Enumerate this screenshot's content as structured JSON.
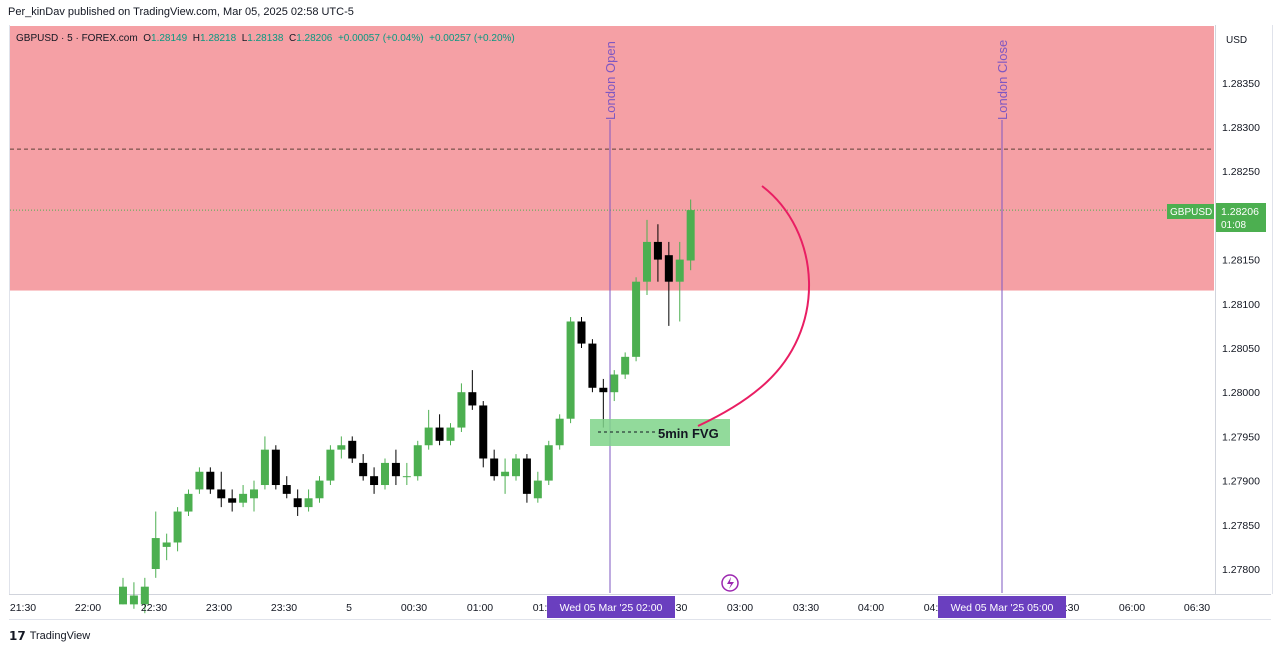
{
  "header": {
    "published_line": "Per_kinDav published on TradingView.com, Mar 05, 2025 02:58 UTC-5"
  },
  "legend": {
    "symbol": "GBPUSD · 5 · FOREX.com",
    "o_label": "O",
    "o_value": "1.28149",
    "h_label": "H",
    "h_value": "1.28218",
    "l_label": "L",
    "l_value": "1.28138",
    "c_label": "C",
    "c_value": "1.28206",
    "change": "+0.00057 (+0.04%)",
    "change2": "+0.00257 (+0.20%)"
  },
  "currency": "USD",
  "price_badge": {
    "symbol": "GBPUSD",
    "price": "1.28206",
    "countdown": "01:08",
    "color": "#4caf50"
  },
  "annotations": {
    "london_open": "London Open",
    "london_close": "London Close",
    "fvg_label": "5min FVG",
    "open_time_tag": "Wed 05 Mar '25   02:00",
    "close_time_tag": "Wed 05 Mar '25   05:00"
  },
  "colors": {
    "up": "#4caf50",
    "down": "#000000",
    "zone": "#f5a0a5",
    "fvg": "#7fd48a",
    "session_line": "#7e57c2",
    "curve": "#e91e63"
  },
  "footer": {
    "brand": "TradingView"
  },
  "chart_data": {
    "type": "candlestick",
    "interval": "5",
    "ylim": [
      1.2776,
      1.284
    ],
    "y_ticks": [
      1.278,
      1.2785,
      1.279,
      1.2795,
      1.28,
      1.2805,
      1.281,
      1.2815,
      1.282,
      1.2825,
      1.283,
      1.2835
    ],
    "y_tick_labels": [
      "1.27800",
      "1.27850",
      "1.27900",
      "1.27950",
      "1.28000",
      "1.28050",
      "1.28100",
      "1.28150",
      "1.28200",
      "1.28250",
      "1.28300",
      "1.28350"
    ],
    "x_tick_labels": [
      "21:30",
      "22:00",
      "22:30",
      "23:00",
      "23:30",
      "5",
      "00:30",
      "01:00",
      "01:",
      ":30",
      "03:00",
      "03:30",
      "04:00",
      "04:",
      ":30",
      "06:00",
      "06:30"
    ],
    "supply_zone": [
      1.28115,
      1.284
    ],
    "dashed_level": 1.28275,
    "fvg_zone": [
      1.2794,
      1.2797
    ],
    "fvg_dashed_level": 1.27955,
    "last_price": 1.28206,
    "candles": [
      [
        1.2776,
        1.2779,
        1.2776,
        1.2778
      ],
      [
        1.2776,
        1.27785,
        1.27755,
        1.2777
      ],
      [
        1.2776,
        1.2779,
        1.2775,
        1.2778
      ],
      [
        1.278,
        1.27865,
        1.2779,
        1.27835
      ],
      [
        1.27825,
        1.2784,
        1.2781,
        1.2783
      ],
      [
        1.2783,
        1.2787,
        1.2782,
        1.27865
      ],
      [
        1.27865,
        1.2789,
        1.2786,
        1.27885
      ],
      [
        1.2789,
        1.27915,
        1.27885,
        1.2791
      ],
      [
        1.2791,
        1.27915,
        1.27885,
        1.2789
      ],
      [
        1.2789,
        1.2791,
        1.2787,
        1.2788
      ],
      [
        1.2788,
        1.2789,
        1.27865,
        1.27875
      ],
      [
        1.27875,
        1.27895,
        1.2787,
        1.27885
      ],
      [
        1.2788,
        1.279,
        1.27865,
        1.2789
      ],
      [
        1.27895,
        1.2795,
        1.2789,
        1.27935
      ],
      [
        1.27935,
        1.2794,
        1.2789,
        1.27895
      ],
      [
        1.27895,
        1.27905,
        1.2788,
        1.27885
      ],
      [
        1.2788,
        1.2789,
        1.2786,
        1.2787
      ],
      [
        1.2787,
        1.2789,
        1.27865,
        1.2788
      ],
      [
        1.2788,
        1.27905,
        1.27875,
        1.279
      ],
      [
        1.279,
        1.2794,
        1.27895,
        1.27935
      ],
      [
        1.27935,
        1.2795,
        1.27925,
        1.2794
      ],
      [
        1.27945,
        1.2795,
        1.2792,
        1.27925
      ],
      [
        1.2792,
        1.2793,
        1.279,
        1.27905
      ],
      [
        1.27905,
        1.27915,
        1.27885,
        1.27895
      ],
      [
        1.27895,
        1.27925,
        1.2789,
        1.2792
      ],
      [
        1.2792,
        1.27935,
        1.27895,
        1.27905
      ],
      [
        1.27905,
        1.2792,
        1.27895,
        1.27905
      ],
      [
        1.27905,
        1.27945,
        1.279,
        1.2794
      ],
      [
        1.2794,
        1.2798,
        1.27935,
        1.2796
      ],
      [
        1.2796,
        1.27975,
        1.2794,
        1.27945
      ],
      [
        1.27945,
        1.27965,
        1.2794,
        1.2796
      ],
      [
        1.2796,
        1.2801,
        1.27955,
        1.28
      ],
      [
        1.28,
        1.28025,
        1.2798,
        1.27985
      ],
      [
        1.27985,
        1.2799,
        1.27915,
        1.27925
      ],
      [
        1.27925,
        1.27935,
        1.279,
        1.27905
      ],
      [
        1.27905,
        1.27925,
        1.27885,
        1.2791
      ],
      [
        1.27905,
        1.2793,
        1.279,
        1.27925
      ],
      [
        1.27925,
        1.2793,
        1.27875,
        1.27885
      ],
      [
        1.2788,
        1.2791,
        1.27875,
        1.279
      ],
      [
        1.279,
        1.27945,
        1.27895,
        1.2794
      ],
      [
        1.2794,
        1.27975,
        1.27935,
        1.2797
      ],
      [
        1.2797,
        1.28085,
        1.27965,
        1.2808
      ],
      [
        1.2808,
        1.28085,
        1.2805,
        1.28055
      ],
      [
        1.28055,
        1.2806,
        1.28,
        1.28005
      ],
      [
        1.28005,
        1.28015,
        1.2796,
        1.28
      ],
      [
        1.28,
        1.28025,
        1.2799,
        1.2802
      ],
      [
        1.2802,
        1.28045,
        1.28015,
        1.2804
      ],
      [
        1.2804,
        1.2813,
        1.28035,
        1.28125
      ],
      [
        1.28125,
        1.28195,
        1.2811,
        1.2817
      ],
      [
        1.2817,
        1.2819,
        1.28125,
        1.2815
      ],
      [
        1.28155,
        1.2817,
        1.28075,
        1.28125
      ],
      [
        1.28125,
        1.2817,
        1.2808,
        1.2815
      ],
      [
        1.28149,
        1.28218,
        1.28138,
        1.28206
      ]
    ]
  }
}
